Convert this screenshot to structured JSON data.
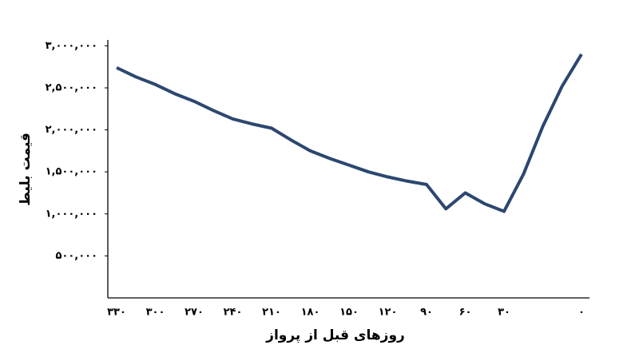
{
  "chart_data": {
    "type": "line",
    "x_label": "روزهای قبل از پرواز",
    "y_label": "قیمت بلیط",
    "categories": [
      "۳۳۰",
      null,
      "۳۰۰",
      null,
      "۲۷۰",
      null,
      "۲۴۰",
      null,
      "۲۱۰",
      null,
      "۱۸۰",
      null,
      "۱۵۰",
      null,
      "۱۲۰",
      null,
      "۹۰",
      null,
      "۶۰",
      null,
      "۳۰",
      null,
      null,
      null,
      "۰"
    ],
    "series": [
      {
        "color": "#2c4770",
        "values": [
          2740000,
          2630000,
          2540000,
          2430000,
          2340000,
          2230000,
          2130000,
          2070000,
          2020000,
          1880000,
          1750000,
          1660000,
          1580000,
          1500000,
          1440000,
          1390000,
          1350000,
          1060000,
          1250000,
          1120000,
          1030000,
          1470000,
          2040000,
          2520000,
          2900000
        ]
      }
    ],
    "ylim": [
      0,
      3000000
    ],
    "yticks": [
      {
        "value": 500000,
        "label": "۵۰۰,۰۰۰"
      },
      {
        "value": 1000000,
        "label": "۱,۰۰۰,۰۰۰"
      },
      {
        "value": 1500000,
        "label": "۱,۵۰۰,۰۰۰"
      },
      {
        "value": 2000000,
        "label": "۲,۰۰۰,۰۰۰"
      },
      {
        "value": 2500000,
        "label": "۲,۵۰۰,۰۰۰"
      },
      {
        "value": 3000000,
        "label": "۳,۰۰۰,۰۰۰"
      }
    ],
    "grid": false
  }
}
